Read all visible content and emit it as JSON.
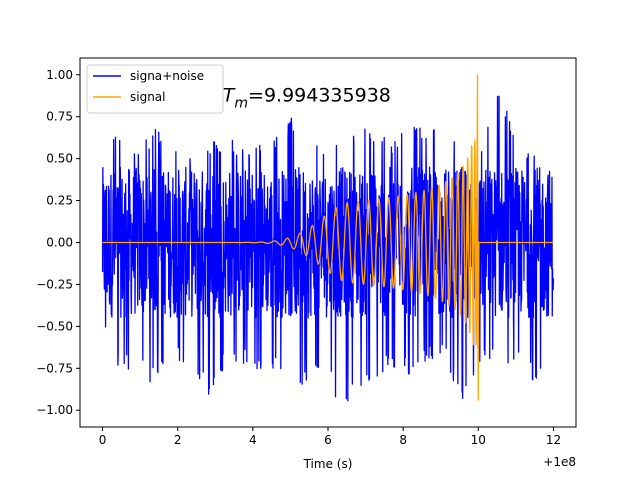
{
  "chart_data": {
    "type": "line",
    "title": "",
    "xlabel": "Time (s)",
    "ylabel": "",
    "x_offset_label": "+1e8",
    "xlim": [
      -0.6,
      12.6
    ],
    "ylim": [
      -1.1,
      1.1
    ],
    "grid": false,
    "legend_position": "top-left",
    "annotation": {
      "text": "=9.994335938",
      "symbol": "T",
      "subscript": "m",
      "anchor_x": 3.2,
      "anchor_y": 0.84
    },
    "x_ticks": [
      {
        "value": 0,
        "label": "0"
      },
      {
        "value": 2,
        "label": "2"
      },
      {
        "value": 4,
        "label": "4"
      },
      {
        "value": 6,
        "label": "6"
      },
      {
        "value": 8,
        "label": "8"
      },
      {
        "value": 10,
        "label": "10"
      },
      {
        "value": 12,
        "label": "12"
      }
    ],
    "y_ticks": [
      {
        "value": 1.0,
        "label": "1.00"
      },
      {
        "value": 0.75,
        "label": "0.75"
      },
      {
        "value": 0.5,
        "label": "0.50"
      },
      {
        "value": 0.25,
        "label": "0.25"
      },
      {
        "value": 0.0,
        "label": "0.00"
      },
      {
        "value": -0.25,
        "label": "−0.25"
      },
      {
        "value": -0.5,
        "label": "−0.50"
      },
      {
        "value": -0.75,
        "label": "−0.75"
      },
      {
        "value": -1.0,
        "label": "−1.00"
      }
    ],
    "series": [
      {
        "name": "signa+noise",
        "color": "#0000ff",
        "x_range": [
          0,
          12
        ],
        "envelope_upper": [
          0.62,
          0.68,
          0.55,
          0.7,
          0.6,
          0.55,
          0.6,
          0.65,
          0.55,
          0.6,
          0.7,
          0.8,
          0.62,
          0.6,
          0.65,
          0.7,
          0.6,
          0.75,
          0.72,
          0.65,
          0.6,
          0.55,
          0.95,
          0.62,
          0.55,
          0.6
        ],
        "envelope_lower": [
          -0.5,
          -0.78,
          -0.75,
          -0.88,
          -0.7,
          -0.8,
          -0.95,
          -0.7,
          -0.75,
          -0.85,
          -0.75,
          -0.9,
          -0.8,
          -0.95,
          -1.0,
          -0.85,
          -0.75,
          -0.8,
          -0.7,
          -0.72,
          -0.98,
          -0.7,
          -0.75,
          -0.7,
          -0.88,
          -0.55
        ]
      },
      {
        "name": "signal",
        "color": "#ffa500",
        "x_range": [
          0,
          12
        ],
        "merger_time": 10.0,
        "peak_max": 1.0,
        "peak_min": -0.94
      }
    ]
  }
}
